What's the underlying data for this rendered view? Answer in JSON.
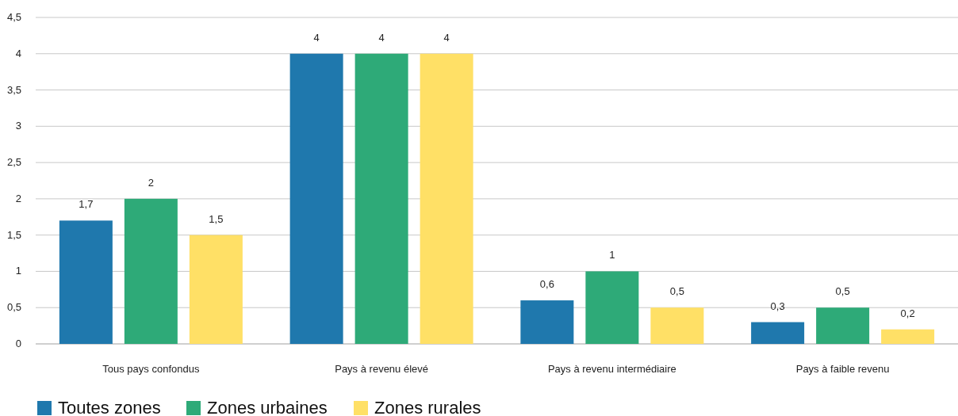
{
  "chart_data": {
    "type": "bar",
    "categories": [
      "Tous pays confondus",
      "Pays à revenu élevé",
      "Pays à revenu intermédiaire",
      "Pays à faible revenu"
    ],
    "series": [
      {
        "name": "Toutes zones",
        "color": "#1f78ad",
        "values": [
          1.7,
          4,
          0.6,
          0.3
        ],
        "value_labels": [
          "1,7",
          "4",
          "0,6",
          "0,3"
        ]
      },
      {
        "name": "Zones urbaines",
        "color": "#2eaa78",
        "values": [
          2,
          4,
          1,
          0.5
        ],
        "value_labels": [
          "2",
          "4",
          "1",
          "0,5"
        ]
      },
      {
        "name": "Zones rurales",
        "color": "#ffe066",
        "values": [
          1.5,
          4,
          0.5,
          0.2
        ],
        "value_labels": [
          "1,5",
          "4",
          "0,5",
          "0,2"
        ]
      }
    ],
    "ylim": [
      0,
      4.5
    ],
    "yticks": [
      0,
      {
        "value": 0.5,
        "label": "0,5"
      },
      1,
      {
        "value": 1.5,
        "label": "1,5"
      },
      2,
      {
        "value": 2.5,
        "label": "2,5"
      },
      3,
      {
        "value": 3.5,
        "label": "3,5"
      },
      4,
      {
        "value": 4.5,
        "label": "4,5"
      }
    ],
    "grid": "y",
    "legend": "bottom left"
  }
}
